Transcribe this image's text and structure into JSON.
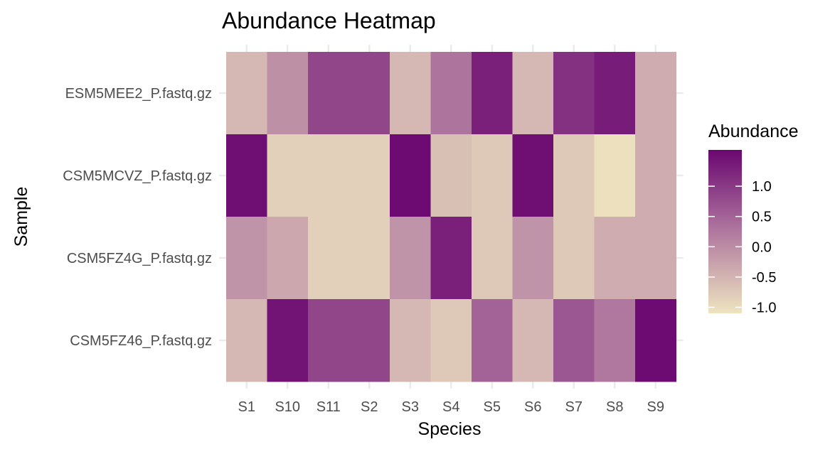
{
  "chart_data": {
    "type": "heatmap",
    "title": "Abundance Heatmap",
    "xlabel": "Species",
    "ylabel": "Sample",
    "x_categories": [
      "S1",
      "S10",
      "S11",
      "S2",
      "S3",
      "S4",
      "S5",
      "S6",
      "S7",
      "S8",
      "S9"
    ],
    "y_categories": [
      "ESM5MEE2_P.fastq.gz",
      "CSM5MCVZ_P.fastq.gz",
      "CSM5FZ4G_P.fastq.gz",
      "CSM5FZ46_P.fastq.gz"
    ],
    "values": [
      [
        -0.55,
        -0.05,
        0.85,
        0.85,
        -0.55,
        0.3,
        1.3,
        -0.55,
        1.1,
        1.35,
        -0.4
      ],
      [
        1.5,
        -0.85,
        -0.85,
        -0.85,
        1.55,
        -0.65,
        -0.75,
        1.5,
        -0.75,
        -1.05,
        -0.4
      ],
      [
        -0.1,
        -0.35,
        -0.85,
        -0.85,
        -0.1,
        1.3,
        -0.75,
        -0.1,
        -0.75,
        -0.4,
        -0.4
      ],
      [
        -0.55,
        1.45,
        0.85,
        0.85,
        -0.55,
        -0.75,
        0.5,
        -0.55,
        0.65,
        0.25,
        1.55
      ]
    ],
    "legend": {
      "title": "Abundance",
      "ticks": [
        1.0,
        0.5,
        0.0,
        -0.5,
        -1.0
      ],
      "tick_labels": [
        "1.0",
        "0.5",
        "0.0",
        "-0.5",
        "-1.0"
      ],
      "range": [
        -1.1,
        1.6
      ],
      "low_color": "#EEE4C0",
      "mid_color": "#B0789F",
      "high_color": "#6A0770"
    },
    "grid": true,
    "legend_position": "right"
  }
}
